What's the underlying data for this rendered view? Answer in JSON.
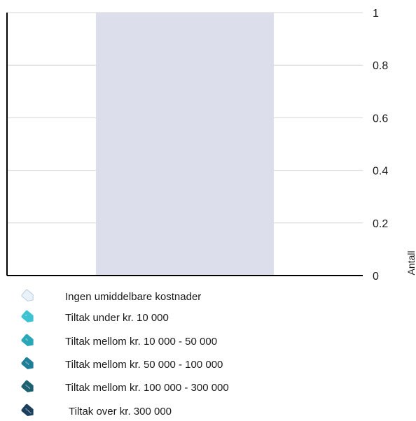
{
  "chart_data": {
    "type": "bar",
    "categories": [
      ""
    ],
    "values": [
      1
    ],
    "xlabel": "",
    "ylabel": "Antall",
    "ylim": [
      0,
      1
    ],
    "yticks": [
      0,
      0.2,
      0.4,
      0.6,
      0.8,
      1
    ],
    "ytick_labels": [
      "0",
      "0.2",
      "0.4",
      "0.6",
      "0.8",
      "1"
    ],
    "y_axis_side": "right",
    "grid": true,
    "bar_color": "#dcdfeb",
    "legend_placement": "bottom",
    "legend": [
      {
        "label": "Ingen umiddelbare kostnader",
        "icon": "empty-tag-icon",
        "color": "#e8f2f8"
      },
      {
        "label": "Tiltak under kr. 10 000",
        "icon": "tag-1-icon",
        "color": "#3fc3d3"
      },
      {
        "label": "Tiltak mellom kr. 10 000 - 50 000",
        "icon": "tag-2-icon",
        "color": "#2aa7b6"
      },
      {
        "label": "Tiltak mellom kr. 50 000 - 100 000",
        "icon": "tag-3-icon",
        "color": "#1f7f98"
      },
      {
        "label": "Tiltak mellom kr. 100 000 - 300 000",
        "icon": "tag-4-icon",
        "color": "#1d6171"
      },
      {
        "label": "Tiltak over kr.  300 000",
        "icon": "tag-5-icon",
        "color": "#1b3f5c"
      }
    ]
  }
}
